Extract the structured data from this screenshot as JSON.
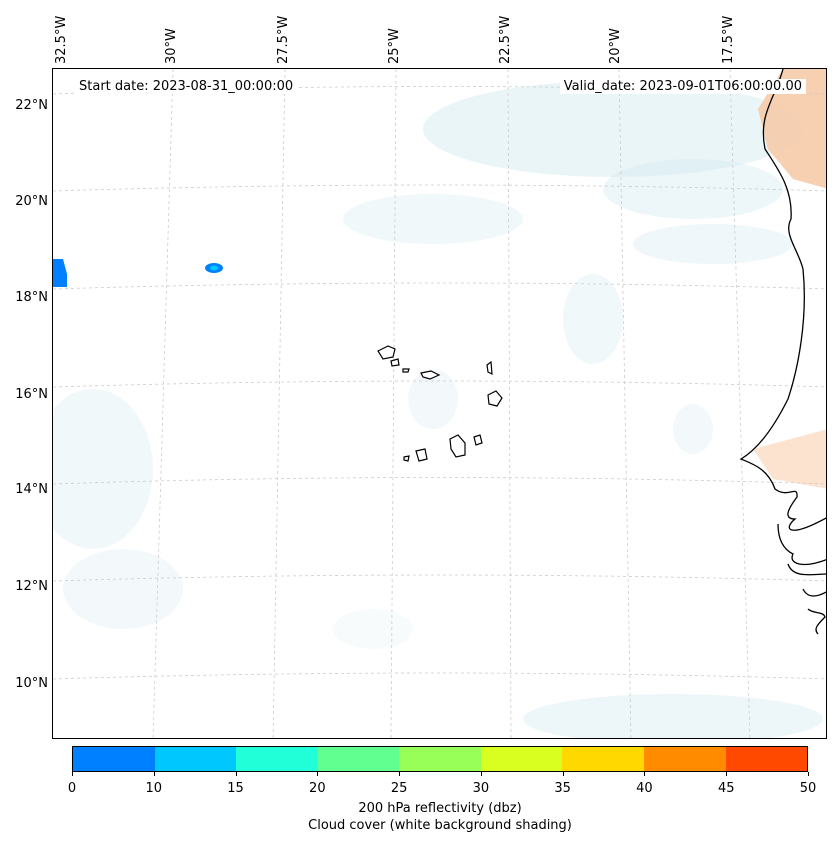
{
  "header": {
    "start_date": "Start date: 2023-08-31_00:00:00",
    "valid_date": "Valid_date: 2023-09-01T06:00:00.00"
  },
  "axes": {
    "longitude_labels": [
      "32.5°W",
      "30°W",
      "27.5°W",
      "25°W",
      "22.5°W",
      "20°W",
      "17.5°W"
    ],
    "latitude_labels": [
      "22°N",
      "20°N",
      "18°N",
      "16°N",
      "14°N",
      "12°N",
      "10°N"
    ]
  },
  "colorbar": {
    "ticks": [
      "0",
      "10",
      "15",
      "20",
      "25",
      "30",
      "35",
      "40",
      "45",
      "50"
    ],
    "colors": [
      "#0080ff",
      "#00c8ff",
      "#20ffd8",
      "#60ff90",
      "#98ff58",
      "#d8ff20",
      "#ffd800",
      "#ff8c00",
      "#ff4800"
    ],
    "label_line1": "200 hPa reflectivity (dbz)",
    "label_line2": "Cloud cover (white background shading)"
  },
  "legend_colors": {
    "cloud": "#d8ecf2",
    "land": "#f6c8a4",
    "coast": "#000000",
    "grid": "#cccccc"
  }
}
